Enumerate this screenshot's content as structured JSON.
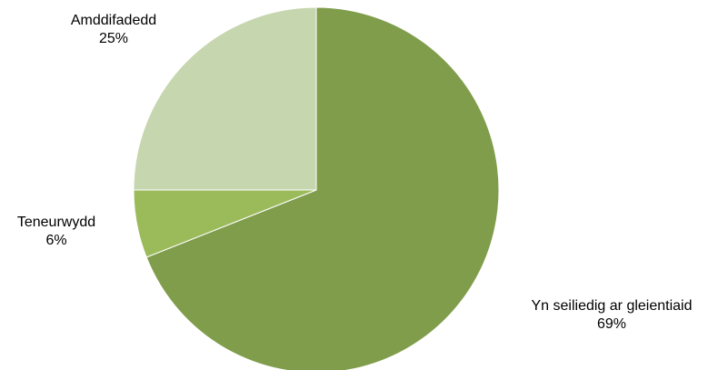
{
  "chart_data": {
    "type": "pie",
    "title": "",
    "slices": [
      {
        "label": "Yn seiliedig ar gleientiaid",
        "value": 69,
        "value_label": "69%",
        "color": "#7f9d4b"
      },
      {
        "label": "Teneurwydd",
        "value": 6,
        "value_label": "6%",
        "color": "#9bbb5b"
      },
      {
        "label": "Amddifadedd",
        "value": 25,
        "value_label": "25%",
        "color": "#c6d6ae"
      }
    ],
    "legend": "none",
    "data_labels": "outside, category name and percentage"
  }
}
